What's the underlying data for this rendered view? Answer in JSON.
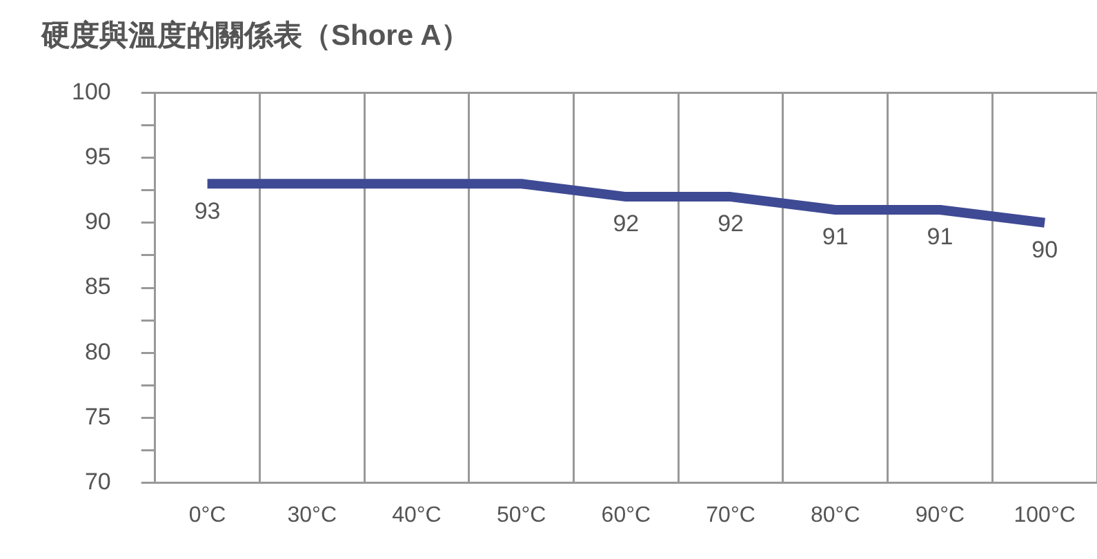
{
  "chart_data": {
    "type": "line",
    "title": "硬度與溫度的關係表（Shore A）",
    "categories": [
      "0°C",
      "30°C",
      "40°C",
      "50°C",
      "60°C",
      "70°C",
      "80°C",
      "90°C",
      "100°C"
    ],
    "series": [
      {
        "color": "#3f4a94",
        "values": [
          93,
          93,
          93,
          93,
          92,
          92,
          91,
          91,
          90
        ],
        "value_labels": [
          "93",
          null,
          null,
          null,
          "92",
          "92",
          "91",
          "91",
          "90"
        ]
      }
    ],
    "ylim": [
      70,
      100
    ],
    "yticks": [
      70,
      {
        "value": 72.5,
        "label": null
      },
      75,
      {
        "value": 77.5,
        "label": null
      },
      80,
      {
        "value": 82.5,
        "label": null
      },
      85,
      {
        "value": 87.5,
        "label": null
      },
      90,
      {
        "value": 92.5,
        "label": null
      },
      95,
      {
        "value": 97.5,
        "label": null
      },
      100
    ],
    "grid": "x",
    "legend": false,
    "marker": "none",
    "line_style": "solid"
  }
}
